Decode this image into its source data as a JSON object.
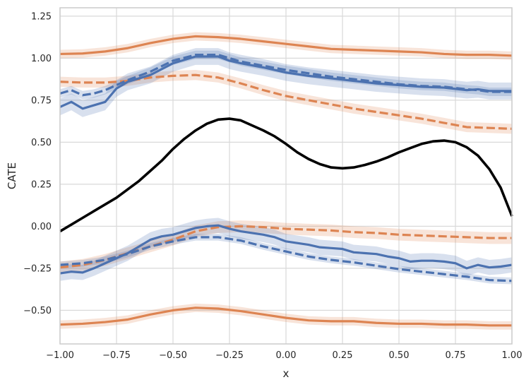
{
  "chart_data": {
    "type": "line",
    "title": "",
    "xlabel": "x",
    "ylabel": "CATE",
    "xlim": [
      -1.0,
      1.0
    ],
    "ylim": [
      -0.7,
      1.3
    ],
    "xticks": [
      -1.0,
      -0.75,
      -0.5,
      -0.25,
      0.0,
      0.25,
      0.5,
      0.75,
      1.0
    ],
    "xtick_labels": [
      "−1.00",
      "−0.75",
      "−0.50",
      "−0.25",
      "0.00",
      "0.25",
      "0.50",
      "0.75",
      "1.00"
    ],
    "yticks": [
      -0.5,
      -0.25,
      0.0,
      0.25,
      0.5,
      0.75,
      1.0,
      1.25
    ],
    "ytick_labels": [
      "−0.50",
      "−0.25",
      "0.00",
      "0.25",
      "0.50",
      "0.75",
      "1.00",
      "1.25"
    ],
    "grid": true,
    "colors": {
      "blue": "#4c72b0",
      "orange": "#dd8452",
      "black": "#000000",
      "grid": "#d9d9d9"
    },
    "series": [
      {
        "name": "true-cate",
        "color": "black",
        "style": "solid",
        "x": [
          -1.0,
          -0.95,
          -0.9,
          -0.85,
          -0.8,
          -0.75,
          -0.7,
          -0.65,
          -0.6,
          -0.55,
          -0.5,
          -0.45,
          -0.4,
          -0.35,
          -0.3,
          -0.25,
          -0.2,
          -0.15,
          -0.1,
          -0.05,
          0.0,
          0.05,
          0.1,
          0.15,
          0.2,
          0.25,
          0.3,
          0.35,
          0.4,
          0.45,
          0.5,
          0.55,
          0.6,
          0.65,
          0.7,
          0.75,
          0.8,
          0.85,
          0.9,
          0.95,
          1.0
        ],
        "y": [
          -0.03,
          0.01,
          0.05,
          0.09,
          0.13,
          0.17,
          0.22,
          0.27,
          0.33,
          0.39,
          0.46,
          0.52,
          0.57,
          0.61,
          0.635,
          0.64,
          0.63,
          0.6,
          0.57,
          0.535,
          0.49,
          0.44,
          0.4,
          0.37,
          0.35,
          0.345,
          0.35,
          0.365,
          0.385,
          0.41,
          0.44,
          0.465,
          0.49,
          0.505,
          0.51,
          0.5,
          0.47,
          0.42,
          0.34,
          0.23,
          0.06
        ]
      },
      {
        "name": "orange-upper-solid",
        "color": "orange",
        "style": "solid",
        "band": 0.025,
        "x": [
          -1.0,
          -0.9,
          -0.8,
          -0.7,
          -0.6,
          -0.5,
          -0.4,
          -0.3,
          -0.2,
          -0.1,
          0.0,
          0.1,
          0.2,
          0.3,
          0.4,
          0.5,
          0.6,
          0.7,
          0.8,
          0.9,
          1.0
        ],
        "y": [
          1.025,
          1.028,
          1.04,
          1.06,
          1.09,
          1.115,
          1.13,
          1.125,
          1.115,
          1.1,
          1.085,
          1.07,
          1.055,
          1.05,
          1.045,
          1.04,
          1.035,
          1.025,
          1.02,
          1.02,
          1.015
        ]
      },
      {
        "name": "orange-upper-dashed",
        "color": "orange",
        "style": "dashed",
        "band": 0.03,
        "x": [
          -1.0,
          -0.9,
          -0.8,
          -0.7,
          -0.6,
          -0.5,
          -0.4,
          -0.3,
          -0.2,
          -0.1,
          0.0,
          0.1,
          0.2,
          0.3,
          0.4,
          0.5,
          0.6,
          0.7,
          0.8,
          0.9,
          1.0
        ],
        "y": [
          0.86,
          0.855,
          0.855,
          0.865,
          0.885,
          0.895,
          0.9,
          0.885,
          0.85,
          0.81,
          0.775,
          0.75,
          0.725,
          0.7,
          0.68,
          0.66,
          0.64,
          0.615,
          0.59,
          0.585,
          0.58
        ]
      },
      {
        "name": "blue-upper-solid",
        "color": "blue",
        "style": "solid",
        "band": 0.05,
        "x": [
          -1.0,
          -0.95,
          -0.9,
          -0.85,
          -0.8,
          -0.75,
          -0.7,
          -0.6,
          -0.5,
          -0.4,
          -0.3,
          -0.25,
          -0.2,
          -0.1,
          0.0,
          0.1,
          0.2,
          0.3,
          0.4,
          0.5,
          0.6,
          0.7,
          0.8,
          0.85,
          0.9,
          1.0
        ],
        "y": [
          0.71,
          0.74,
          0.7,
          0.72,
          0.74,
          0.82,
          0.86,
          0.9,
          0.97,
          1.01,
          1.01,
          0.985,
          0.97,
          0.945,
          0.915,
          0.895,
          0.88,
          0.865,
          0.85,
          0.84,
          0.83,
          0.825,
          0.81,
          0.815,
          0.805,
          0.805
        ]
      },
      {
        "name": "blue-upper-dashed",
        "color": "blue",
        "style": "dashed",
        "band": 0.025,
        "x": [
          -1.0,
          -0.95,
          -0.9,
          -0.85,
          -0.8,
          -0.75,
          -0.7,
          -0.6,
          -0.5,
          -0.4,
          -0.3,
          -0.25,
          -0.2,
          -0.1,
          0.0,
          0.1,
          0.2,
          0.3,
          0.4,
          0.5,
          0.6,
          0.7,
          0.8,
          0.85,
          0.9,
          1.0
        ],
        "y": [
          0.79,
          0.81,
          0.78,
          0.79,
          0.81,
          0.84,
          0.87,
          0.92,
          0.985,
          1.02,
          1.02,
          1.0,
          0.98,
          0.955,
          0.93,
          0.91,
          0.89,
          0.875,
          0.86,
          0.845,
          0.835,
          0.83,
          0.815,
          0.81,
          0.8,
          0.8
        ]
      },
      {
        "name": "orange-lower-dashed",
        "color": "orange",
        "style": "dashed",
        "band": 0.035,
        "x": [
          -1.0,
          -0.9,
          -0.8,
          -0.7,
          -0.6,
          -0.5,
          -0.4,
          -0.3,
          -0.2,
          -0.1,
          0.0,
          0.1,
          0.2,
          0.3,
          0.4,
          0.5,
          0.6,
          0.7,
          0.8,
          0.9,
          1.0
        ],
        "y": [
          -0.245,
          -0.23,
          -0.2,
          -0.16,
          -0.12,
          -0.08,
          -0.03,
          -0.005,
          0.0,
          -0.005,
          -0.015,
          -0.02,
          -0.025,
          -0.035,
          -0.04,
          -0.05,
          -0.055,
          -0.06,
          -0.065,
          -0.07,
          -0.07
        ]
      },
      {
        "name": "blue-lower-solid",
        "color": "blue",
        "style": "solid",
        "band": 0.045,
        "x": [
          -1.0,
          -0.95,
          -0.9,
          -0.85,
          -0.8,
          -0.75,
          -0.7,
          -0.65,
          -0.6,
          -0.55,
          -0.5,
          -0.45,
          -0.4,
          -0.35,
          -0.3,
          -0.25,
          -0.2,
          -0.15,
          -0.1,
          -0.05,
          0.0,
          0.05,
          0.1,
          0.15,
          0.2,
          0.25,
          0.3,
          0.35,
          0.4,
          0.45,
          0.5,
          0.55,
          0.6,
          0.65,
          0.7,
          0.75,
          0.8,
          0.85,
          0.9,
          0.95,
          1.0
        ],
        "y": [
          -0.28,
          -0.27,
          -0.275,
          -0.25,
          -0.22,
          -0.19,
          -0.16,
          -0.12,
          -0.08,
          -0.06,
          -0.05,
          -0.03,
          -0.01,
          0.0,
          0.005,
          -0.015,
          -0.03,
          -0.04,
          -0.05,
          -0.065,
          -0.09,
          -0.1,
          -0.11,
          -0.125,
          -0.13,
          -0.135,
          -0.155,
          -0.16,
          -0.165,
          -0.18,
          -0.19,
          -0.21,
          -0.205,
          -0.205,
          -0.21,
          -0.22,
          -0.25,
          -0.23,
          -0.245,
          -0.24,
          -0.23
        ]
      },
      {
        "name": "blue-lower-dashed",
        "color": "blue",
        "style": "dashed",
        "band": 0.02,
        "x": [
          -1.0,
          -0.9,
          -0.8,
          -0.7,
          -0.6,
          -0.5,
          -0.4,
          -0.3,
          -0.2,
          -0.1,
          0.0,
          0.1,
          0.2,
          0.3,
          0.4,
          0.5,
          0.6,
          0.7,
          0.8,
          0.9,
          1.0
        ],
        "y": [
          -0.23,
          -0.22,
          -0.2,
          -0.165,
          -0.12,
          -0.09,
          -0.065,
          -0.065,
          -0.085,
          -0.12,
          -0.15,
          -0.18,
          -0.2,
          -0.215,
          -0.235,
          -0.255,
          -0.27,
          -0.285,
          -0.3,
          -0.32,
          -0.325
        ]
      },
      {
        "name": "orange-lower-solid",
        "color": "orange",
        "style": "solid",
        "band": 0.025,
        "x": [
          -1.0,
          -0.9,
          -0.8,
          -0.7,
          -0.6,
          -0.5,
          -0.4,
          -0.3,
          -0.2,
          -0.1,
          0.0,
          0.1,
          0.2,
          0.3,
          0.4,
          0.5,
          0.6,
          0.7,
          0.8,
          0.9,
          1.0
        ],
        "y": [
          -0.585,
          -0.58,
          -0.57,
          -0.555,
          -0.525,
          -0.5,
          -0.485,
          -0.49,
          -0.505,
          -0.525,
          -0.545,
          -0.56,
          -0.565,
          -0.565,
          -0.575,
          -0.58,
          -0.58,
          -0.585,
          -0.585,
          -0.59,
          -0.59
        ]
      }
    ]
  }
}
